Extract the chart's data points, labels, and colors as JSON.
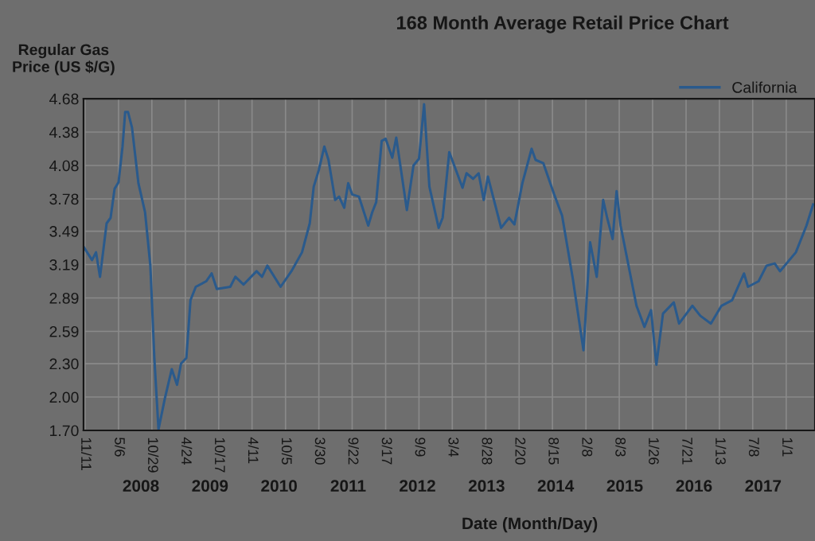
{
  "chart_data": {
    "type": "line",
    "title": "168 Month Average Retail Price Chart",
    "ylabel": "Regular Gas\nPrice (US $/G)",
    "xlabel": "Date (Month/Day)",
    "legend": "top right",
    "grid": true,
    "line_style": "solid",
    "marker": "none",
    "ylim": [
      1.7,
      4.68
    ],
    "yticks": [
      {
        "value": 1.7,
        "label": "1.70"
      },
      {
        "value": 2.0,
        "label": "2.00"
      },
      {
        "value": 2.3,
        "label": "2.30"
      },
      2.59,
      2.89,
      3.19,
      3.49,
      3.78,
      4.08,
      4.38,
      4.68
    ],
    "xlim": [
      "2007-11-03",
      "2018-06-02"
    ],
    "xticks": [
      {
        "value": "2007-11-11",
        "label": "11/11"
      },
      {
        "value": "2008-05-06",
        "label": "5/6"
      },
      {
        "value": "2008-10-29",
        "label": "10/29"
      },
      {
        "value": "2009-04-24",
        "label": "4/24"
      },
      {
        "value": "2009-10-17",
        "label": "10/17"
      },
      {
        "value": "2010-04-11",
        "label": "4/11"
      },
      {
        "value": "2010-10-05",
        "label": "10/5"
      },
      {
        "value": "2011-03-30",
        "label": "3/30"
      },
      {
        "value": "2011-09-22",
        "label": "9/22"
      },
      {
        "value": "2012-03-17",
        "label": "3/17"
      },
      {
        "value": "2012-09-09",
        "label": "9/9"
      },
      {
        "value": "2013-03-04",
        "label": "3/4"
      },
      {
        "value": "2013-08-28",
        "label": "8/28"
      },
      {
        "value": "2014-02-20",
        "label": "2/20"
      },
      {
        "value": "2014-08-15",
        "label": "8/15"
      },
      {
        "value": "2015-02-08",
        "label": "2/8"
      },
      {
        "value": "2015-08-03",
        "label": "8/3"
      },
      {
        "value": "2016-01-26",
        "label": "1/26"
      },
      {
        "value": "2016-07-21",
        "label": "7/21"
      },
      {
        "value": "2017-01-13",
        "label": "1/13"
      },
      {
        "value": "2017-07-08",
        "label": "7/8"
      },
      {
        "value": "2018-01-01",
        "label": "1/1"
      }
    ],
    "x2lim": [
      "2007-11-03",
      "2018-06-02"
    ],
    "x2ticks": [
      {
        "value": "2008-09-01",
        "label": "2008"
      },
      {
        "value": "2009-09-01",
        "label": "2009"
      },
      {
        "value": "2010-09-01",
        "label": "2010"
      },
      {
        "value": "2011-09-01",
        "label": "2011"
      },
      {
        "value": "2012-09-01",
        "label": "2012"
      },
      {
        "value": "2013-09-01",
        "label": "2013"
      },
      {
        "value": "2014-09-01",
        "label": "2014"
      },
      {
        "value": "2015-09-01",
        "label": "2015"
      },
      {
        "value": "2016-09-01",
        "label": "2016"
      },
      {
        "value": "2017-09-01",
        "label": "2017"
      }
    ],
    "series": [
      {
        "name": "California",
        "color": "#2a5a8c",
        "x": [
          "2007-11-03",
          "2007-12-18",
          "2008-01-08",
          "2008-01-29",
          "2008-03-04",
          "2008-03-25",
          "2008-04-15",
          "2008-05-06",
          "2008-05-27",
          "2008-06-10",
          "2008-06-25",
          "2008-07-16",
          "2008-08-19",
          "2008-09-23",
          "2008-10-21",
          "2008-11-11",
          "2008-12-03",
          "2009-01-06",
          "2009-02-11",
          "2009-03-11",
          "2009-04-01",
          "2009-04-29",
          "2009-05-21",
          "2009-06-18",
          "2009-08-12",
          "2009-09-10",
          "2009-10-07",
          "2009-12-17",
          "2010-01-13",
          "2010-02-25",
          "2010-05-05",
          "2010-06-03",
          "2010-07-01",
          "2010-09-09",
          "2010-11-05",
          "2010-12-31",
          "2011-02-10",
          "2011-03-03",
          "2011-03-30",
          "2011-04-28",
          "2011-05-20",
          "2011-06-24",
          "2011-07-15",
          "2011-08-11",
          "2011-09-01",
          "2011-09-22",
          "2011-10-28",
          "2011-12-16",
          "2012-01-06",
          "2012-01-27",
          "2012-02-25",
          "2012-03-17",
          "2012-04-21",
          "2012-05-12",
          "2012-07-07",
          "2012-08-11",
          "2012-09-09",
          "2012-10-06",
          "2012-11-03",
          "2012-12-22",
          "2013-01-12",
          "2013-02-16",
          "2013-04-27",
          "2013-05-18",
          "2013-06-22",
          "2013-07-21",
          "2013-08-17",
          "2013-09-08",
          "2013-11-17",
          "2013-12-29",
          "2014-01-26",
          "2014-03-09",
          "2014-04-27",
          "2014-05-18",
          "2014-06-28",
          "2014-08-24",
          "2014-10-05",
          "2014-12-01",
          "2015-01-26",
          "2015-03-02",
          "2015-04-06",
          "2015-05-10",
          "2015-05-31",
          "2015-06-29",
          "2015-07-20",
          "2015-08-10",
          "2015-11-02",
          "2015-12-14",
          "2016-01-18",
          "2016-02-15",
          "2016-03-21",
          "2016-05-17",
          "2016-06-14",
          "2016-08-23",
          "2016-10-04",
          "2016-11-29",
          "2017-01-24",
          "2017-03-21",
          "2017-05-23",
          "2017-06-13",
          "2017-08-08",
          "2017-09-19",
          "2017-11-01",
          "2017-11-29",
          "2018-02-21",
          "2018-04-18",
          "2018-05-23"
        ],
        "values": [
          3.35,
          3.23,
          3.3,
          3.08,
          3.56,
          3.61,
          3.87,
          3.93,
          4.25,
          4.56,
          4.56,
          4.42,
          3.92,
          3.66,
          3.18,
          2.35,
          1.71,
          1.99,
          2.25,
          2.11,
          2.3,
          2.35,
          2.87,
          2.99,
          3.04,
          3.11,
          2.97,
          2.99,
          3.08,
          3.01,
          3.13,
          3.08,
          3.18,
          2.99,
          3.13,
          3.3,
          3.56,
          3.89,
          4.04,
          4.25,
          4.13,
          3.77,
          3.8,
          3.7,
          3.92,
          3.82,
          3.8,
          3.54,
          3.66,
          3.75,
          4.3,
          4.32,
          4.15,
          4.33,
          3.68,
          4.08,
          4.14,
          4.63,
          3.89,
          3.52,
          3.61,
          4.2,
          3.88,
          4.01,
          3.96,
          4.01,
          3.77,
          3.98,
          3.52,
          3.61,
          3.55,
          3.92,
          4.23,
          4.13,
          4.1,
          3.82,
          3.63,
          3.06,
          2.42,
          3.39,
          3.08,
          3.77,
          3.61,
          3.42,
          3.85,
          3.54,
          2.82,
          2.63,
          2.78,
          2.29,
          2.75,
          2.85,
          2.66,
          2.82,
          2.73,
          2.66,
          2.82,
          2.87,
          3.11,
          2.99,
          3.04,
          3.18,
          3.2,
          3.13,
          3.3,
          3.54,
          3.73
        ]
      }
    ]
  }
}
